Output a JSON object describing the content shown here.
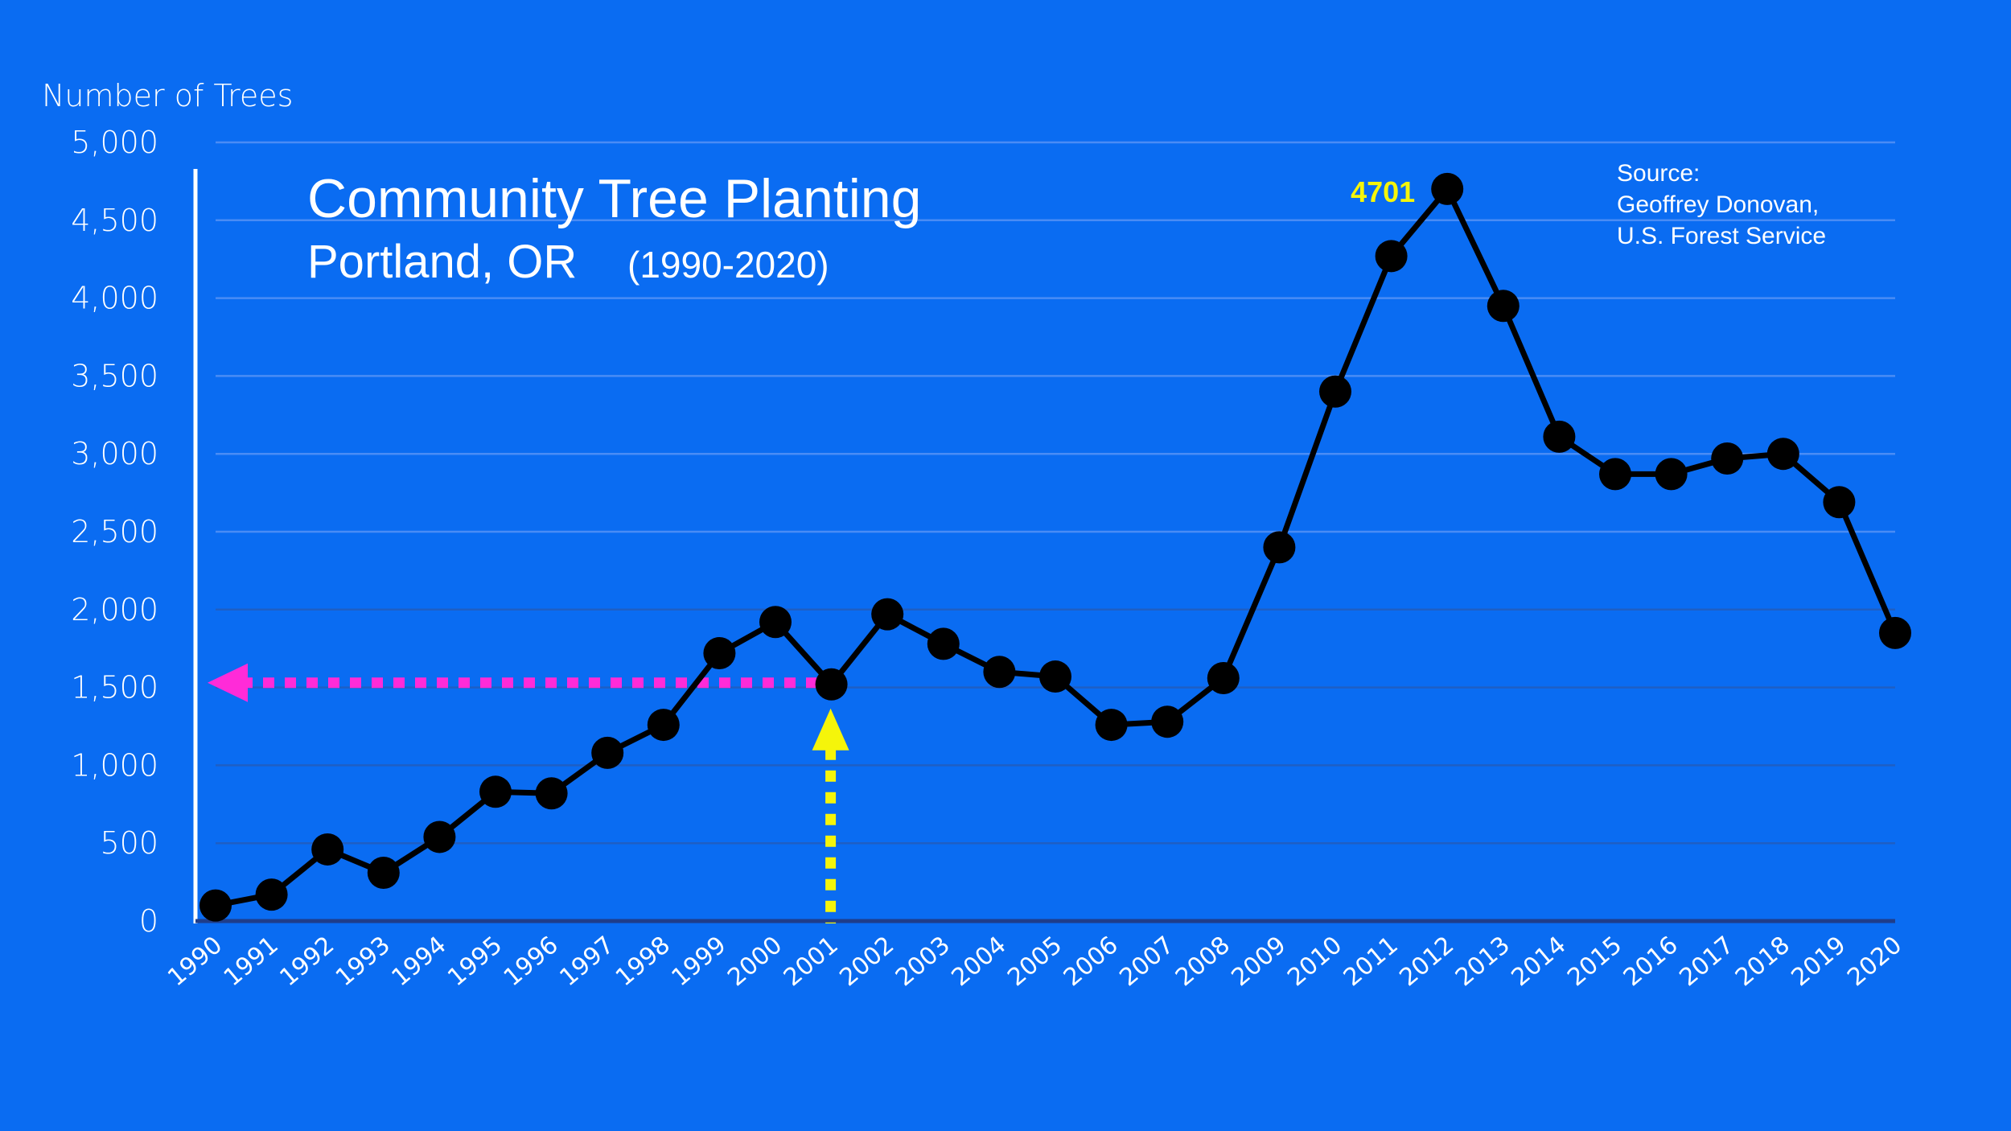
{
  "chart_data": {
    "type": "line",
    "title": "Community Tree Planting",
    "subtitle_location": "Portland, OR",
    "subtitle_range": "(1990-2020)",
    "ylabel": "Number of Trees",
    "xlabel": "",
    "ylim": [
      0,
      5000
    ],
    "yticks": [
      0,
      500,
      1000,
      1500,
      2000,
      2500,
      3000,
      3500,
      4000,
      4500,
      5000
    ],
    "ytick_labels": [
      "0",
      "500",
      "1,000",
      "1,500",
      "2,000",
      "2,500",
      "3,000",
      "3,500",
      "4,000",
      "4,500",
      "5,000"
    ],
    "grid": true,
    "x": [
      "1990",
      "1991",
      "1992",
      "1993",
      "1994",
      "1995",
      "1996",
      "1997",
      "1998",
      "1999",
      "2000",
      "2001",
      "2002",
      "2003",
      "2004",
      "2005",
      "2006",
      "2007",
      "2008",
      "2009",
      "2010",
      "2011",
      "2012",
      "2013",
      "2014",
      "2015",
      "2016",
      "2017",
      "2018",
      "2019",
      "2020"
    ],
    "series": [
      {
        "values": [
          100,
          170,
          460,
          310,
          540,
          830,
          820,
          1080,
          1260,
          1720,
          1920,
          1520,
          1970,
          1780,
          1600,
          1570,
          1260,
          1280,
          1560,
          2400,
          3400,
          4270,
          4701,
          3950,
          3110,
          2870,
          2870,
          2970,
          3000,
          2690,
          1850
        ]
      }
    ],
    "annotations": {
      "peak_label": "4701",
      "peak_year": "2012",
      "source_lines": [
        "Source:",
        "Geoffrey Donovan,",
        "U.S. Forest Service"
      ],
      "highlight_year": "2001",
      "highlight_value": 1520
    },
    "colors": {
      "background": "#0a6cf2",
      "line": "#000000",
      "markers": "#000000",
      "horizontal_arrow": "#ff2bd8",
      "vertical_arrow": "#f5f50a",
      "peak_label": "#f5f50a",
      "text": "#ffffff"
    }
  }
}
